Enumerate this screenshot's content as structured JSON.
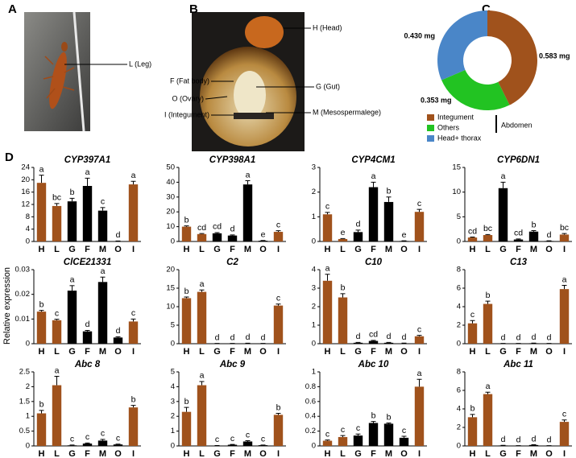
{
  "figure": {
    "panels": [
      "A",
      "B",
      "C",
      "D"
    ],
    "photo_a_labels": [
      "L (Leg)"
    ],
    "photo_b_labels": [
      "H (Head)",
      "F (Fat body)",
      "O (Ovary)",
      "I (Integument)",
      "G (Gut)",
      "M (Mesospermalege)"
    ],
    "y_axis_label": "Relative expression"
  },
  "chart_data": [
    {
      "type": "donut",
      "categories": [
        "Integument",
        "Others",
        "Head+ thorax"
      ],
      "values": [
        0.583,
        0.353,
        0.43
      ],
      "value_labels": [
        "0.583 mg",
        "0.353 mg",
        "0.430 mg"
      ],
      "colors": [
        "#a0521c",
        "#22c322",
        "#4a86c8"
      ],
      "group_label": "Abdomen"
    },
    {
      "type": "bar",
      "title": "CYP397A1",
      "categories": [
        "H",
        "L",
        "G",
        "F",
        "M",
        "O",
        "I"
      ],
      "values": [
        19,
        11.5,
        13,
        18,
        10,
        0.1,
        18.5
      ],
      "errors": [
        2.5,
        0.8,
        1,
        2.5,
        1,
        0.05,
        1
      ],
      "letters": [
        "a",
        "bc",
        "b",
        "a",
        "c",
        "d",
        "a"
      ],
      "colors": [
        "#a0521c",
        "#a0521c",
        "#000000",
        "#000000",
        "#000000",
        "#000000",
        "#a0521c"
      ],
      "ylim": [
        0,
        24
      ],
      "yticks": [
        0,
        4,
        8,
        12,
        16,
        20,
        24
      ]
    },
    {
      "type": "bar",
      "title": "CYP398A1",
      "categories": [
        "H",
        "L",
        "G",
        "F",
        "M",
        "O",
        "I"
      ],
      "values": [
        10,
        5,
        5.5,
        4,
        38.5,
        0.5,
        6.5
      ],
      "errors": [
        0.5,
        0.4,
        0.5,
        0.4,
        2.5,
        0.2,
        0.8
      ],
      "letters": [
        "b",
        "cd",
        "cd",
        "d",
        "a",
        "e",
        "c"
      ],
      "colors": [
        "#a0521c",
        "#a0521c",
        "#000000",
        "#000000",
        "#000000",
        "#000000",
        "#a0521c"
      ],
      "ylim": [
        0,
        50
      ],
      "yticks": [
        0,
        10,
        20,
        30,
        40,
        50
      ]
    },
    {
      "type": "bar",
      "title": "CYP4CM1",
      "categories": [
        "H",
        "L",
        "G",
        "F",
        "M",
        "O",
        "I"
      ],
      "values": [
        1.1,
        0.1,
        0.38,
        2.2,
        1.6,
        0.02,
        1.2
      ],
      "errors": [
        0.08,
        0.02,
        0.08,
        0.2,
        0.2,
        0.01,
        0.1
      ],
      "letters": [
        "c",
        "e",
        "d",
        "a",
        "b",
        "e",
        "c"
      ],
      "colors": [
        "#a0521c",
        "#a0521c",
        "#000000",
        "#000000",
        "#000000",
        "#000000",
        "#a0521c"
      ],
      "ylim": [
        0,
        3
      ],
      "yticks": [
        0,
        1,
        2,
        3
      ]
    },
    {
      "type": "bar",
      "title": "CYP6DN1",
      "categories": [
        "H",
        "L",
        "G",
        "F",
        "M",
        "O",
        "I"
      ],
      "values": [
        0.8,
        1.3,
        10.8,
        0.4,
        2,
        0.1,
        1.4
      ],
      "errors": [
        0.1,
        0.1,
        1.2,
        0.1,
        0.2,
        0.05,
        0.2
      ],
      "letters": [
        "cd",
        "bc",
        "a",
        "cd",
        "b",
        "d",
        "bc"
      ],
      "colors": [
        "#a0521c",
        "#a0521c",
        "#000000",
        "#000000",
        "#000000",
        "#000000",
        "#a0521c"
      ],
      "ylim": [
        0,
        15
      ],
      "yticks": [
        0,
        5,
        10,
        15
      ]
    },
    {
      "type": "bar",
      "title": "ClCE21331",
      "categories": [
        "H",
        "L",
        "G",
        "F",
        "M",
        "O",
        "I"
      ],
      "values": [
        0.013,
        0.0095,
        0.0215,
        0.005,
        0.025,
        0.0025,
        0.009
      ],
      "errors": [
        0.0005,
        0.0004,
        0.002,
        0.0004,
        0.002,
        0.0003,
        0.001
      ],
      "letters": [
        "b",
        "c",
        "a",
        "d",
        "a",
        "d",
        "c"
      ],
      "colors": [
        "#a0521c",
        "#a0521c",
        "#000000",
        "#000000",
        "#000000",
        "#000000",
        "#a0521c"
      ],
      "ylim": [
        0,
        0.03
      ],
      "yticks": [
        0,
        0.01,
        0.02,
        0.03
      ]
    },
    {
      "type": "bar",
      "title": "C2",
      "categories": [
        "H",
        "L",
        "G",
        "F",
        "M",
        "O",
        "I"
      ],
      "values": [
        12.3,
        14,
        0.05,
        0.05,
        0.1,
        0.05,
        10.3
      ],
      "errors": [
        0.3,
        0.5,
        0.02,
        0.02,
        0.03,
        0.02,
        0.4
      ],
      "letters": [
        "b",
        "a",
        "d",
        "d",
        "d",
        "d",
        "c"
      ],
      "colors": [
        "#a0521c",
        "#a0521c",
        "#000000",
        "#000000",
        "#000000",
        "#000000",
        "#a0521c"
      ],
      "ylim": [
        0,
        20
      ],
      "yticks": [
        0,
        5,
        10,
        15,
        20
      ]
    },
    {
      "type": "bar",
      "title": "C10",
      "categories": [
        "H",
        "L",
        "G",
        "F",
        "M",
        "O",
        "I"
      ],
      "values": [
        3.4,
        2.5,
        0.05,
        0.15,
        0.05,
        0.02,
        0.4
      ],
      "errors": [
        0.35,
        0.2,
        0.02,
        0.03,
        0.02,
        0.01,
        0.05
      ],
      "letters": [
        "a",
        "b",
        "d",
        "cd",
        "d",
        "d",
        "c"
      ],
      "colors": [
        "#a0521c",
        "#a0521c",
        "#000000",
        "#000000",
        "#000000",
        "#000000",
        "#a0521c"
      ],
      "ylim": [
        0,
        4
      ],
      "yticks": [
        0,
        1,
        2,
        3,
        4
      ]
    },
    {
      "type": "bar",
      "title": "C13",
      "categories": [
        "H",
        "L",
        "G",
        "F",
        "M",
        "O",
        "I"
      ],
      "values": [
        2.2,
        4.3,
        0.02,
        0.02,
        0.05,
        0.02,
        5.9
      ],
      "errors": [
        0.3,
        0.3,
        0.01,
        0.01,
        0.02,
        0.01,
        0.4
      ],
      "letters": [
        "c",
        "b",
        "d",
        "d",
        "d",
        "d",
        "a"
      ],
      "colors": [
        "#a0521c",
        "#a0521c",
        "#000000",
        "#000000",
        "#000000",
        "#000000",
        "#a0521c"
      ],
      "ylim": [
        0,
        8
      ],
      "yticks": [
        0,
        2,
        4,
        6,
        8
      ]
    },
    {
      "type": "bar",
      "title": "Abc 8",
      "categories": [
        "H",
        "L",
        "G",
        "F",
        "M",
        "O",
        "I"
      ],
      "values": [
        1.1,
        2.05,
        0.02,
        0.08,
        0.18,
        0.05,
        1.3
      ],
      "errors": [
        0.1,
        0.3,
        0.01,
        0.02,
        0.04,
        0.01,
        0.07
      ],
      "letters": [
        "b",
        "a",
        "c",
        "c",
        "c",
        "c",
        "b"
      ],
      "colors": [
        "#a0521c",
        "#a0521c",
        "#000000",
        "#000000",
        "#000000",
        "#000000",
        "#a0521c"
      ],
      "ylim": [
        0,
        2.5
      ],
      "yticks": [
        0,
        0.5,
        1,
        1.5,
        2,
        2.5
      ]
    },
    {
      "type": "bar",
      "title": "Abc 9",
      "categories": [
        "H",
        "L",
        "G",
        "F",
        "M",
        "O",
        "I"
      ],
      "values": [
        2.3,
        4.1,
        0.02,
        0.08,
        0.3,
        0.05,
        2.1
      ],
      "errors": [
        0.3,
        0.25,
        0.01,
        0.02,
        0.05,
        0.01,
        0.1
      ],
      "letters": [
        "b",
        "a",
        "c",
        "c",
        "c",
        "c",
        "b"
      ],
      "colors": [
        "#a0521c",
        "#a0521c",
        "#000000",
        "#000000",
        "#000000",
        "#000000",
        "#a0521c"
      ],
      "ylim": [
        0,
        5
      ],
      "yticks": [
        0,
        1,
        2,
        3,
        4,
        5
      ]
    },
    {
      "type": "bar",
      "title": "Abc 10",
      "categories": [
        "H",
        "L",
        "G",
        "F",
        "M",
        "O",
        "I"
      ],
      "values": [
        0.07,
        0.12,
        0.14,
        0.31,
        0.3,
        0.11,
        0.8
      ],
      "errors": [
        0.01,
        0.02,
        0.02,
        0.02,
        0.01,
        0.02,
        0.1
      ],
      "letters": [
        "c",
        "c",
        "c",
        "b",
        "b",
        "c",
        "a"
      ],
      "colors": [
        "#a0521c",
        "#a0521c",
        "#000000",
        "#000000",
        "#000000",
        "#000000",
        "#a0521c"
      ],
      "ylim": [
        0,
        1
      ],
      "yticks": [
        0,
        0.2,
        0.4,
        0.6,
        0.8,
        1
      ]
    },
    {
      "type": "bar",
      "title": "Abc 11",
      "categories": [
        "H",
        "L",
        "G",
        "F",
        "M",
        "O",
        "I"
      ],
      "values": [
        3.1,
        5.6,
        0.05,
        0.02,
        0.1,
        0.02,
        2.6
      ],
      "errors": [
        0.3,
        0.2,
        0.02,
        0.01,
        0.03,
        0.01,
        0.2
      ],
      "letters": [
        "b",
        "a",
        "d",
        "d",
        "d",
        "d",
        "c"
      ],
      "colors": [
        "#a0521c",
        "#a0521c",
        "#000000",
        "#000000",
        "#000000",
        "#000000",
        "#a0521c"
      ],
      "ylim": [
        0,
        8
      ],
      "yticks": [
        0,
        2,
        4,
        6,
        8
      ]
    }
  ]
}
